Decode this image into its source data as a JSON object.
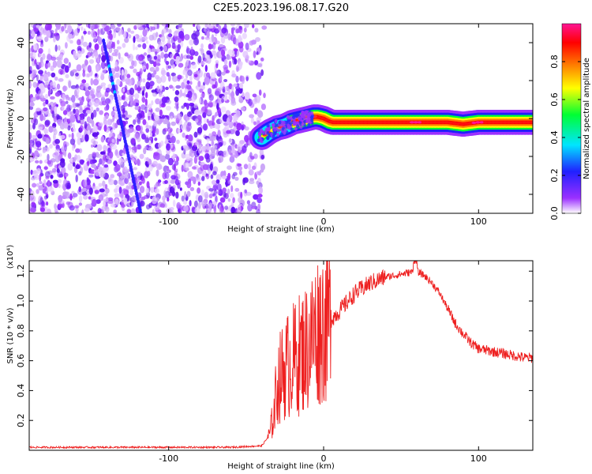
{
  "title": "C2E5.2023.196.08.17.G20",
  "chart_data": [
    {
      "type": "heatmap",
      "xlabel": "Height of straight line (km)",
      "ylabel": "Frequency (Hz)",
      "xlim": [
        -190,
        135
      ],
      "ylim": [
        -50,
        50
      ],
      "xticks": [
        -100,
        0,
        100
      ],
      "yticks": [
        -40,
        -20,
        0,
        20,
        40
      ],
      "colorbar": {
        "label": "Normalized spectral amplitude",
        "range": [
          0.0,
          1.0
        ],
        "ticks": [
          0.0,
          0.2,
          0.4,
          0.6,
          0.8
        ],
        "tick_labels": [
          "0.0",
          "0.2",
          "0.4",
          "0.6",
          "0.8"
        ],
        "colormap": [
          "#ffffff",
          "#9b30ff",
          "#2020ff",
          "#00e5ff",
          "#00ff33",
          "#ffff00",
          "#ff7f00",
          "#ff0000",
          "#ff1493"
        ]
      },
      "noise_region_x": [
        -190,
        -38
      ],
      "features": {
        "diagonal_streak": {
          "x": [
            -142,
            -118
          ],
          "y": [
            41,
            -50
          ]
        },
        "main_band": {
          "x": [
            -40,
            -35,
            -30,
            -25,
            -20,
            -15,
            -10,
            -5,
            0,
            5,
            10,
            20,
            40,
            60,
            80,
            90,
            100,
            120,
            135
          ],
          "y": [
            -10,
            -7,
            -5,
            -4,
            -2,
            -1,
            0,
            1,
            0,
            -2,
            -2,
            -2,
            -2,
            -2,
            -2,
            -3,
            -2,
            -2,
            -2
          ],
          "peak_x": [
            60,
            100
          ]
        }
      }
    },
    {
      "type": "line",
      "xlabel": "Height of straight line (km)",
      "ylabel": "SNR (10 * v/v)",
      "y_multiplier": "(x10⁴)",
      "xlim": [
        -190,
        135
      ],
      "ylim": [
        0,
        1.27
      ],
      "xticks": [
        -100,
        0,
        100
      ],
      "yticks": [
        0.2,
        0.4,
        0.6,
        0.8,
        1.0,
        1.2
      ],
      "ytick_labels": [
        "0.2",
        "0.4",
        "0.6",
        "0.8",
        "1.0",
        "1.2"
      ],
      "series": [
        {
          "color": "#ee2020",
          "x": [
            -190,
            -150,
            -100,
            -60,
            -40,
            -35,
            -32,
            -30,
            -25,
            -20,
            -15,
            -10,
            -5,
            0,
            5,
            10,
            20,
            30,
            40,
            50,
            60,
            65,
            70,
            75,
            80,
            85,
            90,
            95,
            100,
            110,
            120,
            130,
            135
          ],
          "y": [
            0.02,
            0.02,
            0.02,
            0.02,
            0.03,
            0.1,
            0.25,
            0.45,
            0.55,
            0.6,
            0.65,
            0.7,
            0.8,
            0.85,
            0.88,
            0.93,
            1.05,
            1.12,
            1.16,
            1.18,
            1.2,
            1.17,
            1.12,
            1.05,
            0.95,
            0.85,
            0.78,
            0.72,
            0.68,
            0.66,
            0.64,
            0.62,
            0.62
          ]
        }
      ]
    }
  ]
}
